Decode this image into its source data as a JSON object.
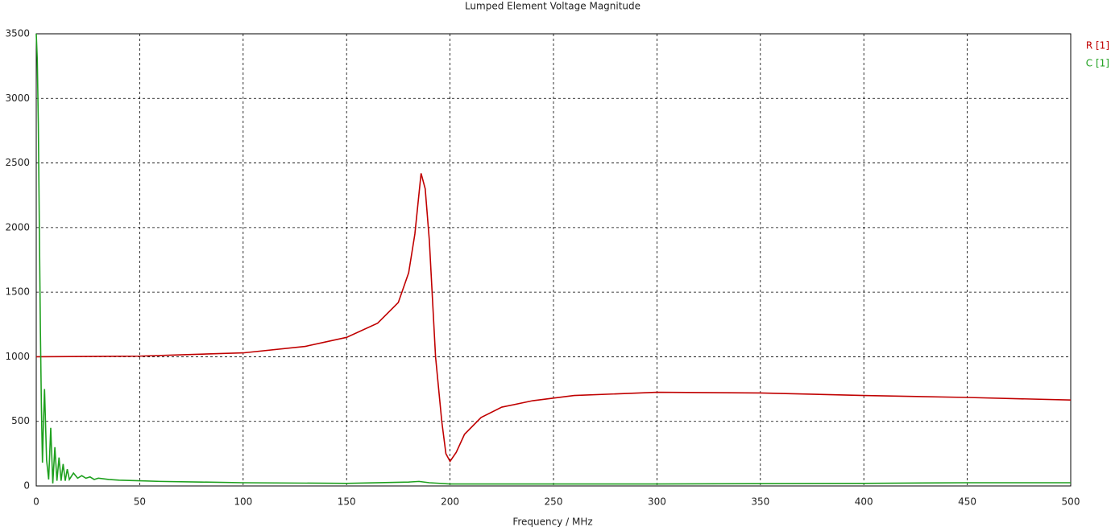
{
  "chart_data": {
    "type": "line",
    "title": "Lumped Element Voltage Magnitude",
    "x_label": "Frequency / MHz",
    "xlim": [
      0,
      500
    ],
    "xticks": [
      0,
      50,
      100,
      150,
      200,
      250,
      300,
      350,
      400,
      450,
      500
    ],
    "ylim": [
      0,
      3500
    ],
    "yticks": [
      0,
      500,
      1000,
      1500,
      2000,
      2500,
      3000,
      3500
    ],
    "grid": true,
    "legend": "top-right",
    "series": [
      {
        "name": "R [1]",
        "color": "#c00000",
        "x": [
          0,
          50,
          100,
          130,
          150,
          165,
          175,
          180,
          183,
          186,
          188,
          190,
          193,
          196,
          198,
          200,
          203,
          207,
          215,
          225,
          240,
          260,
          300,
          350,
          400,
          450,
          500
        ],
        "values": [
          1000,
          1005,
          1030,
          1080,
          1150,
          1260,
          1420,
          1650,
          1950,
          2420,
          2300,
          1900,
          1000,
          500,
          250,
          190,
          260,
          400,
          530,
          610,
          660,
          700,
          725,
          720,
          700,
          685,
          665
        ]
      },
      {
        "name": "C [1]",
        "color": "#1ea01e",
        "x": [
          0,
          0.5,
          1,
          1.5,
          2,
          2.5,
          3,
          3.5,
          4,
          5,
          6,
          7,
          8,
          9,
          10,
          11,
          12,
          13,
          14,
          15,
          16,
          18,
          20,
          22,
          24,
          26,
          28,
          30,
          35,
          40,
          50,
          60,
          80,
          100,
          150,
          180,
          185,
          190,
          200,
          250,
          300,
          400,
          450,
          500
        ],
        "values": [
          3500,
          3300,
          2800,
          2000,
          1200,
          600,
          180,
          500,
          750,
          200,
          50,
          450,
          20,
          300,
          40,
          220,
          40,
          170,
          40,
          130,
          50,
          100,
          60,
          80,
          60,
          70,
          50,
          60,
          50,
          45,
          40,
          35,
          30,
          25,
          20,
          30,
          35,
          25,
          15,
          15,
          15,
          20,
          25,
          25
        ]
      }
    ]
  }
}
